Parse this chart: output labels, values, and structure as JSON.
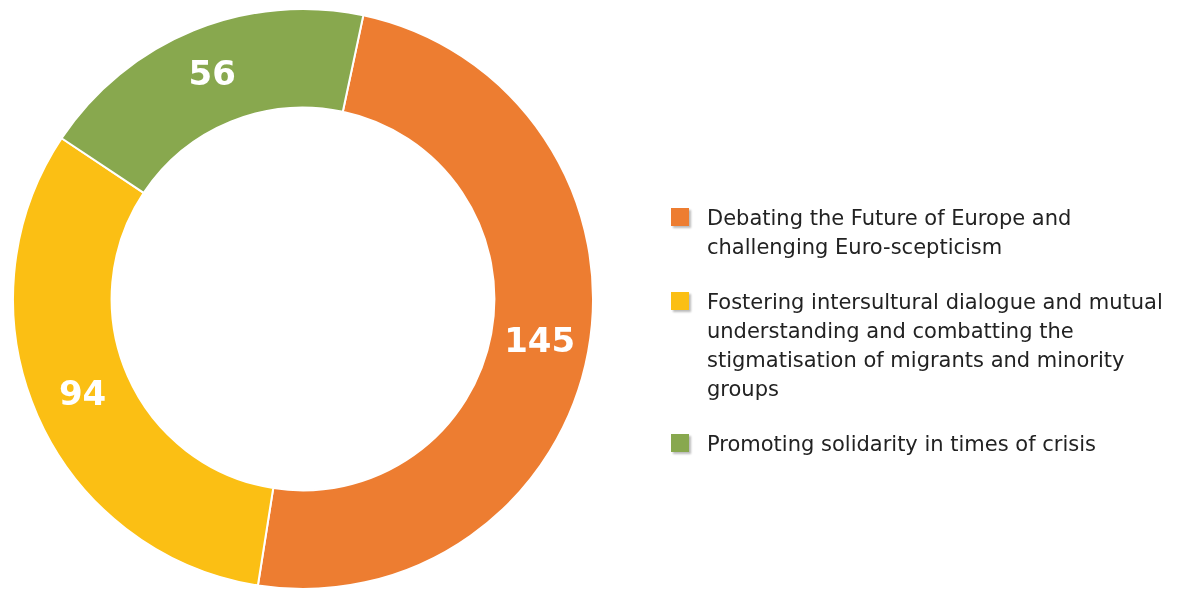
{
  "chart_data": {
    "type": "donut",
    "categories": [
      "Debating the Future of Europe and challenging Euro-scepticism",
      "Fostering intersultural dialogue and mutual understanding and combatting the stigmatisation of migrants and minority groups",
      "Promoting solidarity in times of crisis"
    ],
    "values": [
      145,
      94,
      56
    ],
    "colors": [
      "#ed7d31",
      "#fbbf14",
      "#88a84e"
    ],
    "data_labels": true,
    "legend": "right"
  }
}
